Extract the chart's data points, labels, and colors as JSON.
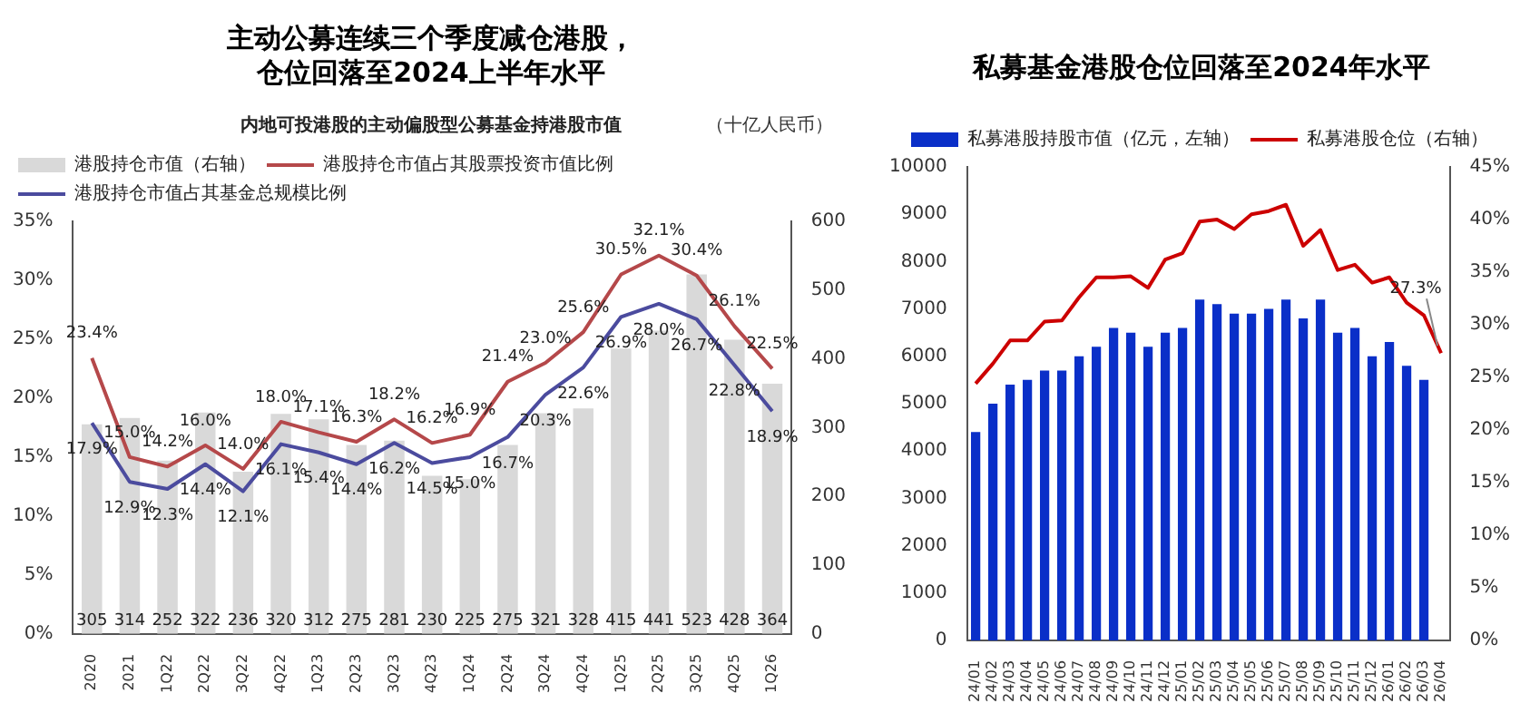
{
  "chart_data": [
    {
      "type": "bar",
      "title": "主动公募连续三个季度减仓港股，仓位回落至2024上半年水平",
      "subtitle": "内地可投港股的主动偏股型公募基金持港股市值",
      "annotations": [
        "（十亿人民币）"
      ],
      "categories": [
        "2020",
        "2021",
        "1Q22",
        "2Q22",
        "3Q22",
        "4Q22",
        "1Q23",
        "2Q23",
        "3Q23",
        "4Q23",
        "1Q24",
        "2Q24",
        "3Q24",
        "4Q24",
        "1Q25",
        "2Q25",
        "3Q25",
        "4Q25",
        "1Q26"
      ],
      "series": [
        {
          "name": "港股持仓市值（右轴）",
          "type": "bar",
          "axis": "y2",
          "color": "#d9d9d9",
          "values": [
            305,
            314,
            252,
            322,
            236,
            320,
            312,
            275,
            281,
            230,
            225,
            275,
            321,
            328,
            415,
            441,
            523,
            428,
            364
          ],
          "value_labels": [
            "305",
            "314",
            "252",
            "322",
            "236",
            "320",
            "312",
            "275",
            "281",
            "230",
            "225",
            "275",
            "321",
            "328",
            "415",
            "441",
            "523",
            "428",
            "364"
          ]
        },
        {
          "name": "港股持仓市值占其股票投资市值比例",
          "type": "line",
          "color": "#b5484a",
          "values": [
            23.4,
            15.0,
            14.2,
            16.0,
            14.0,
            18.0,
            17.1,
            16.3,
            18.2,
            16.2,
            16.9,
            21.4,
            23.0,
            25.6,
            30.5,
            32.1,
            30.4,
            26.1,
            22.5
          ],
          "value_labels": [
            "23.4%",
            "15.0%",
            "14.2%",
            "16.0%",
            "14.0%",
            "18.0%",
            "17.1%",
            "16.3%",
            "18.2%",
            "16.2%",
            "16.9%",
            "21.4%",
            "23.0%",
            "25.6%",
            "30.5%",
            "32.1%",
            "30.4%",
            "26.1%",
            "22.5%"
          ]
        },
        {
          "name": "港股持仓市值占其基金总规模比例",
          "type": "line",
          "color": "#4b4b9e",
          "values": [
            17.9,
            12.9,
            12.3,
            14.4,
            12.1,
            16.1,
            15.4,
            14.4,
            16.2,
            14.5,
            15.0,
            16.7,
            20.3,
            22.6,
            26.9,
            28.0,
            26.7,
            22.8,
            18.9
          ],
          "value_labels": [
            "17.9%",
            "12.9%",
            "12.3%",
            "14.4%",
            "12.1%",
            "16.1%",
            "15.4%",
            "14.4%",
            "16.2%",
            "14.5%",
            "15.0%",
            "16.7%",
            "20.3%",
            "22.6%",
            "26.9%",
            "28.0%",
            "26.7%",
            "22.8%",
            "18.9%"
          ]
        }
      ],
      "ylim": [
        0,
        35
      ],
      "yticks": [
        {
          "value": 0,
          "label": "0%"
        },
        {
          "value": 5,
          "label": "5%"
        },
        {
          "value": 10,
          "label": "10%"
        },
        {
          "value": 15,
          "label": "15%"
        },
        {
          "value": 20,
          "label": "20%"
        },
        {
          "value": 25,
          "label": "25%"
        },
        {
          "value": 30,
          "label": "30%"
        },
        {
          "value": 35,
          "label": "35%"
        }
      ],
      "y2lim": [
        0,
        600
      ],
      "y2ticks": [
        0,
        100,
        200,
        300,
        400,
        500,
        600
      ],
      "legend": "top left",
      "grid": false,
      "marker": "none",
      "line_style": "solid"
    },
    {
      "type": "bar",
      "title": "私募基金港股仓位回落至2024年水平",
      "categories": [
        "24/01",
        "24/02",
        "24/03",
        "24/04",
        "24/05",
        "24/06",
        "24/07",
        "24/08",
        "24/09",
        "24/10",
        "24/11",
        "24/12",
        "25/01",
        "25/02",
        "25/03",
        "25/04",
        "25/05",
        "25/06",
        "25/07",
        "25/08",
        "25/09",
        "25/10",
        "25/11",
        "25/12",
        "26/01",
        "26/02",
        "26/03",
        "26/04"
      ],
      "series": [
        {
          "name": "私募港股持股市值（亿元，左轴）",
          "type": "bar",
          "color": "#0a2fc8",
          "values": [
            4400,
            5000,
            5400,
            5500,
            5700,
            5700,
            6000,
            6200,
            6600,
            6500,
            6200,
            6500,
            6600,
            7200,
            7100,
            6900,
            6900,
            7000,
            7200,
            6800,
            7200,
            6500,
            6600,
            6000,
            6300,
            5800,
            5500,
            null
          ]
        },
        {
          "name": "私募港股仓位（右轴）",
          "type": "line",
          "axis": "y2",
          "color": "#cc0000",
          "values": [
            24.4,
            26.3,
            28.5,
            28.5,
            30.3,
            30.4,
            32.6,
            34.5,
            34.5,
            34.6,
            33.5,
            36.2,
            36.8,
            39.8,
            40.0,
            39.1,
            40.5,
            40.8,
            41.4,
            37.5,
            39.0,
            35.2,
            35.7,
            34.0,
            34.5,
            32.1,
            30.9,
            27.3
          ],
          "value_labels": [
            null,
            null,
            null,
            null,
            null,
            null,
            null,
            null,
            null,
            null,
            null,
            null,
            null,
            null,
            null,
            null,
            null,
            null,
            null,
            null,
            null,
            null,
            null,
            null,
            null,
            null,
            null,
            "27.3%"
          ]
        }
      ],
      "ylim": [
        0,
        10000
      ],
      "yticks": [
        0,
        1000,
        2000,
        3000,
        4000,
        5000,
        6000,
        7000,
        8000,
        9000,
        10000
      ],
      "y2lim": [
        0,
        45
      ],
      "y2ticks": [
        {
          "value": 0,
          "label": "0%"
        },
        {
          "value": 5,
          "label": "5%"
        },
        {
          "value": 10,
          "label": "10%"
        },
        {
          "value": 15,
          "label": "15%"
        },
        {
          "value": 20,
          "label": "20%"
        },
        {
          "value": 25,
          "label": "25%"
        },
        {
          "value": 30,
          "label": "30%"
        },
        {
          "value": 35,
          "label": "35%"
        },
        {
          "value": 40,
          "label": "40%"
        },
        {
          "value": 45,
          "label": "45%"
        }
      ],
      "legend": "top",
      "grid": false,
      "marker": "none",
      "line_style": "solid"
    }
  ]
}
